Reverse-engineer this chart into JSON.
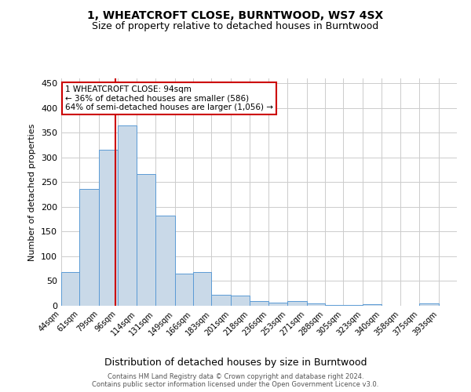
{
  "title1": "1, WHEATCROFT CLOSE, BURNTWOOD, WS7 4SX",
  "title2": "Size of property relative to detached houses in Burntwood",
  "xlabel": "Distribution of detached houses by size in Burntwood",
  "ylabel": "Number of detached properties",
  "bin_labels": [
    "44sqm",
    "61sqm",
    "79sqm",
    "96sqm",
    "114sqm",
    "131sqm",
    "149sqm",
    "166sqm",
    "183sqm",
    "201sqm",
    "218sqm",
    "236sqm",
    "253sqm",
    "271sqm",
    "288sqm",
    "305sqm",
    "323sqm",
    "340sqm",
    "358sqm",
    "375sqm",
    "393sqm"
  ],
  "bin_edges": [
    44,
    61,
    79,
    96,
    114,
    131,
    149,
    166,
    183,
    201,
    218,
    236,
    253,
    271,
    288,
    305,
    323,
    340,
    358,
    375,
    393,
    410
  ],
  "bar_heights": [
    68,
    237,
    315,
    365,
    267,
    183,
    65,
    68,
    22,
    20,
    10,
    6,
    10,
    5,
    2,
    2,
    3,
    0,
    0,
    4,
    0
  ],
  "bar_color": "#c9d9e8",
  "bar_edge_color": "#5b9bd5",
  "property_size": 94,
  "red_line_color": "#cc0000",
  "annotation_line1": "1 WHEATCROFT CLOSE: 94sqm",
  "annotation_line2": "← 36% of detached houses are smaller (586)",
  "annotation_line3": "64% of semi-detached houses are larger (1,056) →",
  "annotation_box_color": "#cc0000",
  "ylim": [
    0,
    460
  ],
  "grid_color": "#cccccc",
  "footer_text": "Contains HM Land Registry data © Crown copyright and database right 2024.\nContains public sector information licensed under the Open Government Licence v3.0.",
  "background_color": "#ffffff",
  "yticks": [
    0,
    50,
    100,
    150,
    200,
    250,
    300,
    350,
    400,
    450
  ]
}
